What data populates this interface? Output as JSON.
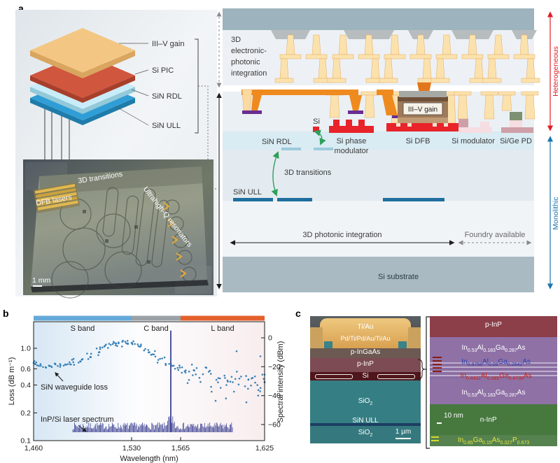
{
  "panels": {
    "a": "a",
    "b": "b",
    "c": "c"
  },
  "panel_a": {
    "stack": {
      "layers": [
        {
          "label": "III–V gain",
          "color": "#f3c783"
        },
        {
          "label": "Si PIC",
          "color": "#d0563e"
        },
        {
          "label": "SiN RDL",
          "color": "#c9edf8"
        },
        {
          "label": "SiN ULL",
          "color": "#2f9ed6"
        }
      ]
    },
    "photo": {
      "dfb": "DFB lasers",
      "transitions": "3D transitions",
      "resonators": "Ultrahigh-Q resonators",
      "scale": "1 mm"
    },
    "xs": {
      "region": [
        "3D",
        "electronic-",
        "photonic",
        "integration"
      ],
      "si": "Si",
      "sin_rdl": "SiN RDL",
      "phase1": "Si phase",
      "phase2": "modulator",
      "dfb": "Si DFB",
      "gain": "III–V gain",
      "mod": "Si modulator",
      "pd": "Si/Ge PD",
      "trans": "3D transitions",
      "ull": "SiN ULL",
      "photint": "3D photonic integration",
      "foundry": "Foundry available",
      "substrate": "Si substrate",
      "hetero": "Heterogeneous",
      "mono": "Monolithic",
      "hetero_color": "#e01e25",
      "mono_color": "#1b74ae"
    }
  },
  "chart_data": {
    "type": "scatter",
    "xlabel": "Wavelength (nm)",
    "ylabel_left": "Loss (dB m⁻¹)",
    "ylabel_right": "Spectral intensity (dBm)",
    "xlim": [
      1460,
      1625
    ],
    "x_tick_values": [
      1460,
      1530,
      1565,
      1625
    ],
    "x_tick_labels": [
      "1,460",
      "1,530",
      "1,565",
      "1,625"
    ],
    "left_axis": {
      "scale": "log",
      "ticks": [
        1.0,
        0.6,
        0.4,
        0.2,
        0.1
      ],
      "tick_labels": [
        "1.0",
        "0.6",
        "0.4",
        "0.2",
        "0.1"
      ],
      "lim": [
        0.1,
        1.9
      ]
    },
    "right_axis": {
      "scale": "linear",
      "ticks": [
        0,
        -20,
        -40,
        -60
      ],
      "tick_labels": [
        "0",
        "−20",
        "−40",
        "−60"
      ],
      "lim": [
        -67,
        5
      ]
    },
    "bands": [
      {
        "label": "S band",
        "range_nm": [
          1460,
          1530
        ],
        "color": "#64a9d9"
      },
      {
        "label": "C band",
        "range_nm": [
          1530,
          1565
        ],
        "color": "#9aa1a7"
      },
      {
        "label": "L band",
        "range_nm": [
          1565,
          1625
        ],
        "color": "#e4602c"
      }
    ],
    "series": [
      {
        "name": "SiN waveguide loss",
        "type": "scatter",
        "axis": "left",
        "color": "#2d7ab2",
        "trend_nm_vs_db_per_m": [
          [
            1460,
            0.7
          ],
          [
            1465,
            0.67
          ],
          [
            1470,
            0.64
          ],
          [
            1475,
            0.66
          ],
          [
            1480,
            0.65
          ],
          [
            1485,
            0.68
          ],
          [
            1490,
            0.71
          ],
          [
            1495,
            0.75
          ],
          [
            1500,
            0.83
          ],
          [
            1505,
            0.93
          ],
          [
            1510,
            1.03
          ],
          [
            1515,
            1.1
          ],
          [
            1519,
            1.14
          ],
          [
            1523,
            1.15
          ],
          [
            1527,
            1.12
          ],
          [
            1531,
            1.09
          ],
          [
            1536,
            1.04
          ],
          [
            1541,
            0.96
          ],
          [
            1546,
            0.86
          ],
          [
            1551,
            0.77
          ],
          [
            1556,
            0.69
          ],
          [
            1561,
            0.63
          ],
          [
            1566,
            0.6
          ],
          [
            1571,
            0.56
          ],
          [
            1576,
            0.51
          ],
          [
            1581,
            0.48
          ],
          [
            1586,
            0.47
          ],
          [
            1591,
            0.45
          ],
          [
            1596,
            0.44
          ],
          [
            1601,
            0.45
          ],
          [
            1606,
            0.44
          ],
          [
            1611,
            0.46
          ],
          [
            1616,
            0.43
          ],
          [
            1621,
            0.42
          ],
          [
            1625,
            0.45
          ]
        ],
        "outliers": [
          [
            1605,
            0.93
          ],
          [
            1622,
            0.82
          ],
          [
            1590,
            0.27
          ],
          [
            1612,
            0.26
          ],
          [
            1570,
            0.42
          ]
        ],
        "noise_rel_short": 0.06,
        "noise_rel_long": 0.2,
        "points_per_anchor": 5
      },
      {
        "name": "InP/Si laser spectrum",
        "type": "spectrum",
        "axis": "right",
        "color": "#3b3f90",
        "noise_floor_dbm": -61,
        "noise_amplitude_db": 2.5,
        "span_nm": [
          1488,
          1602
        ],
        "peak_nm": 1558,
        "peak_dbm": 5
      }
    ]
  },
  "panel_c": {
    "sem": {
      "ti_au": "Ti/Au",
      "pd": "Pd/Ti/Pd/Au/Ti/Au",
      "ingaas": "p-InGaAs",
      "p_inp": "p-InP",
      "si": "Si",
      "sio2": "SiO2",
      "sin_ull": "SiN ULL",
      "sio2b": "SiO2",
      "scale": "1 μm"
    },
    "tem": {
      "p_inp": "p-InP",
      "f1": "In0.53Al0.183Ga0.287As",
      "f2": "In0.8758Al0.08Ga0.2642As",
      "f3": "In0.4411Al0.085Ga0.4739As",
      "f4": "In0.53Al0.183Ga0.287As",
      "n_inp": "n-InP",
      "f5": "In0.85Ga0.15As0.327P0.673",
      "scale": "10 nm"
    }
  }
}
